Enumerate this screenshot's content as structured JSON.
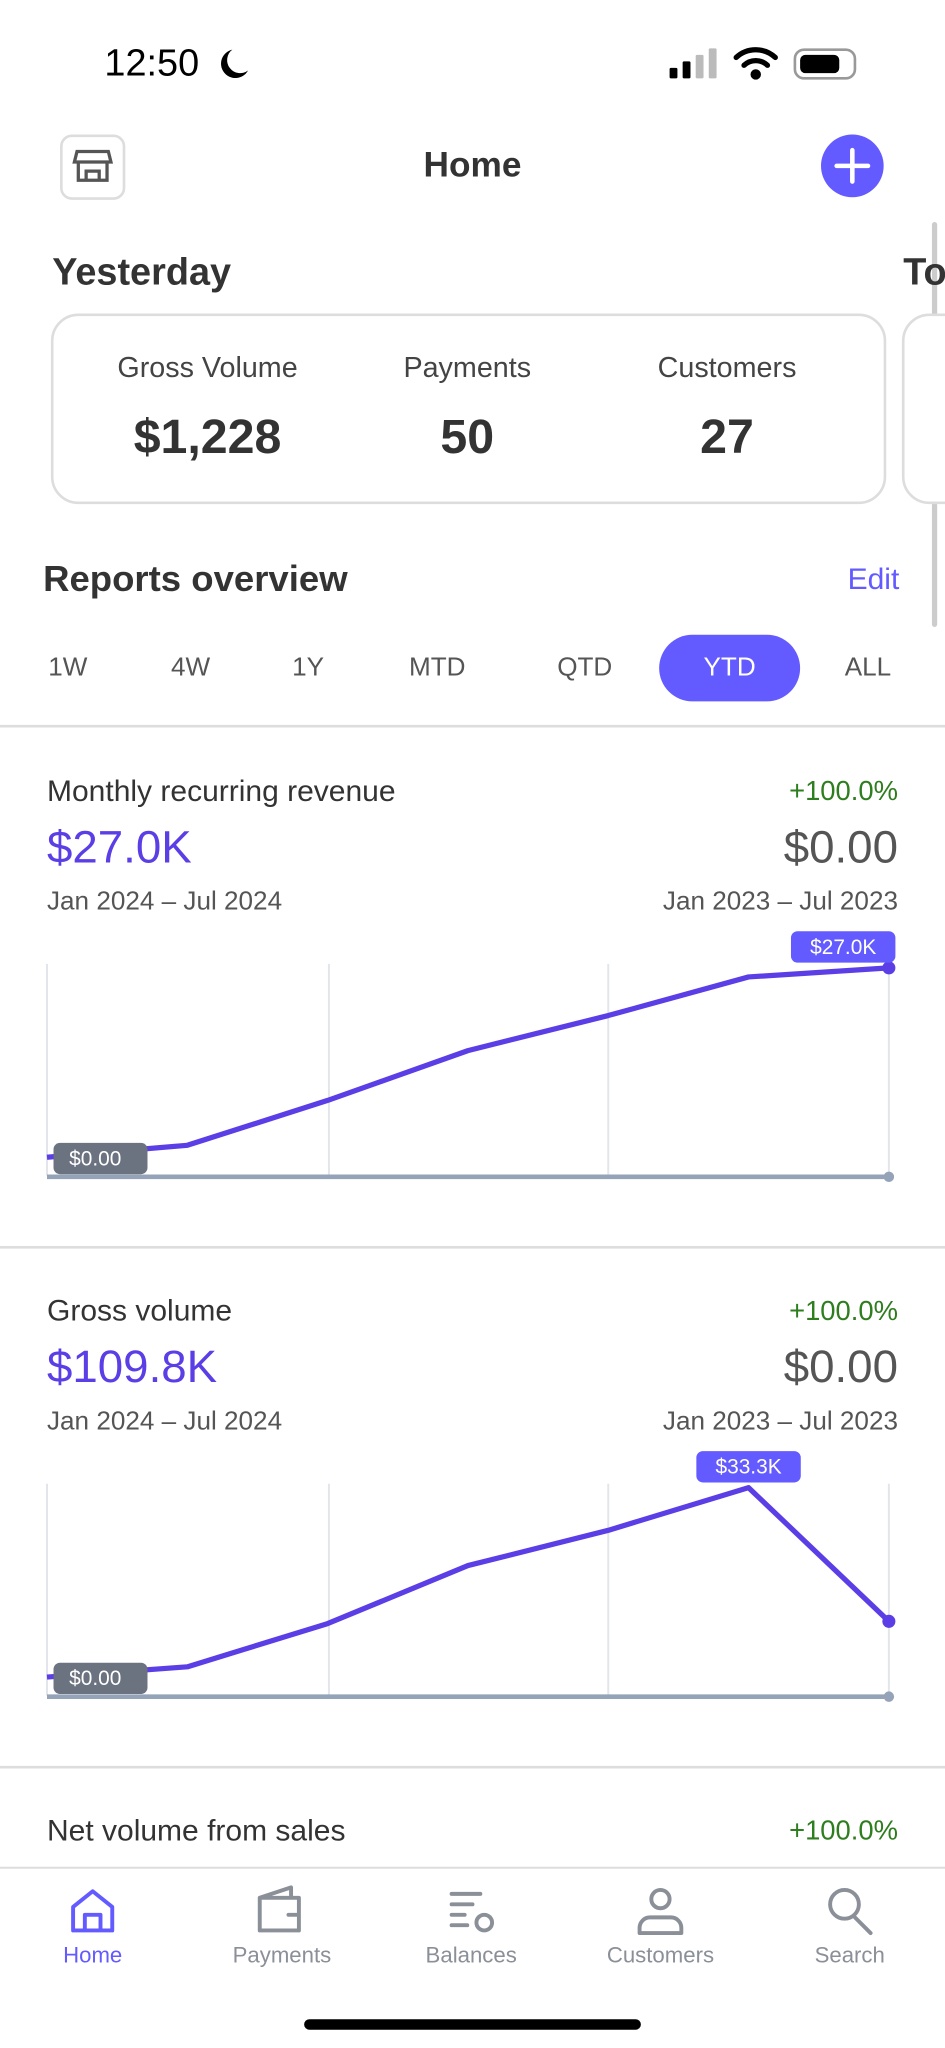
{
  "status_bar": {
    "time": "12:50"
  },
  "header": {
    "title": "Home"
  },
  "yesterday": {
    "title": "Yesterday",
    "next_title": "To",
    "stats": [
      {
        "label": "Gross Volume",
        "value": "$1,228"
      },
      {
        "label": "Payments",
        "value": "50"
      },
      {
        "label": "Customers",
        "value": "27"
      }
    ]
  },
  "reports": {
    "title": "Reports overview",
    "edit": "Edit",
    "ranges": [
      "1W",
      "4W",
      "1Y",
      "MTD",
      "QTD",
      "YTD",
      "ALL"
    ],
    "selected": 5
  },
  "cards": [
    {
      "title": "Monthly recurring revenue",
      "change": "+100.0%",
      "value": "$27.0K",
      "previous_value": "$0.00",
      "period": "Jan 2024 – Jul 2024",
      "previous_period": "Jan 2023 – Jul 2023",
      "chart": {
        "type": "line",
        "color": "#5b3ee6",
        "values": [
          0,
          1.7,
          8.1,
          15.2,
          20.2,
          25.7,
          27.0
        ],
        "value_labels": [
          "$0.00",
          null,
          null,
          null,
          null,
          null,
          "$27.0K"
        ]
      }
    },
    {
      "title": "Gross volume",
      "change": "+100.0%",
      "value": "$109.8K",
      "previous_value": "$0.00",
      "period": "Jan 2024 – Jul 2024",
      "previous_period": "Jan 2023 – Jul 2023",
      "chart": {
        "type": "line",
        "color": "#5b3ee6",
        "values": [
          0,
          1.8,
          9.4,
          19.6,
          25.8,
          33.3,
          9.8
        ],
        "value_labels": [
          "$0.00",
          null,
          null,
          null,
          null,
          "$33.3K",
          null
        ]
      }
    },
    {
      "title": "Net volume from sales",
      "change": "+100.0%"
    }
  ],
  "tab_bar": {
    "items": [
      "Home",
      "Payments",
      "Balances",
      "Customers",
      "Search"
    ],
    "selected": 0
  }
}
